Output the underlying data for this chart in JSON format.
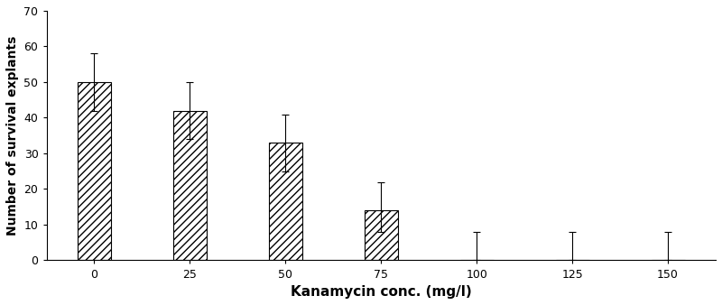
{
  "categories": [
    "0",
    "25",
    "50",
    "75",
    "100",
    "125",
    "150"
  ],
  "values": [
    50,
    42,
    33,
    14,
    0,
    0,
    0
  ],
  "error_upper": [
    8,
    8,
    8,
    8,
    8,
    8,
    8
  ],
  "error_lower": [
    8,
    8,
    8,
    6,
    0,
    0,
    0
  ],
  "xlabel": "Kanamycin conc. (mg/l)",
  "ylabel": "Number of survival explants",
  "ylim": [
    0,
    70
  ],
  "yticks": [
    0,
    10,
    20,
    30,
    40,
    50,
    60,
    70
  ],
  "bar_color": "#ffffff",
  "bar_edgecolor": "#000000",
  "hatch": "////",
  "figsize": [
    8.0,
    3.38
  ],
  "dpi": 100,
  "bar_width": 0.35,
  "xlabel_fontsize": 11,
  "ylabel_fontsize": 10,
  "tick_fontsize": 9
}
